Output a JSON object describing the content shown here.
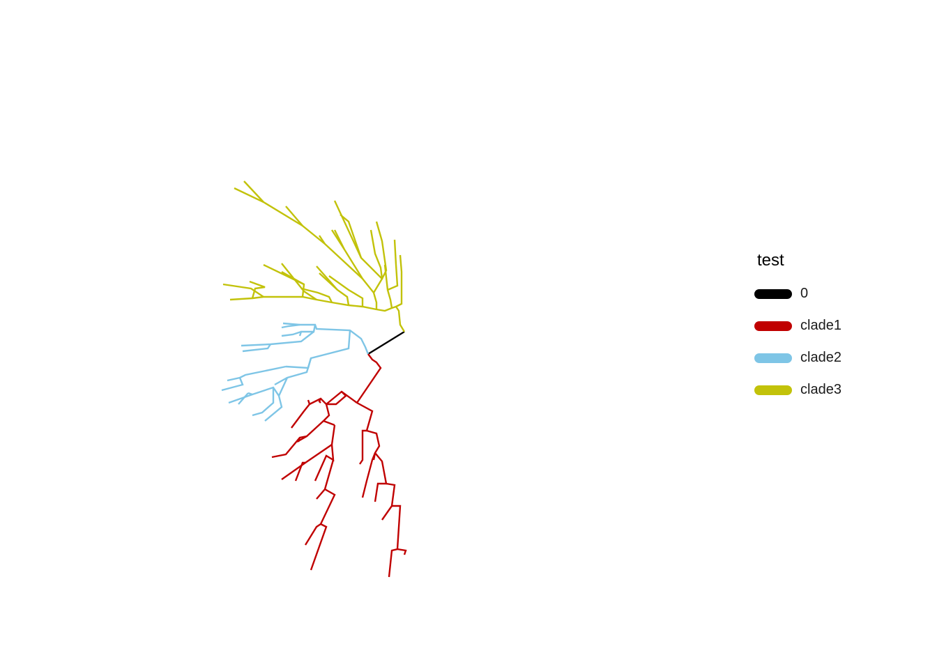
{
  "legend": {
    "title": "test",
    "items": [
      {
        "label": "0",
        "color": "#000000"
      },
      {
        "label": "clade1",
        "color": "#C00000"
      },
      {
        "label": "clade2",
        "color": "#7EC5E6"
      },
      {
        "label": "clade3",
        "color": "#C2C20A"
      }
    ]
  },
  "tree": {
    "layout": "fan",
    "groups": [
      "0",
      "clade1",
      "clade2",
      "clade3"
    ]
  }
}
